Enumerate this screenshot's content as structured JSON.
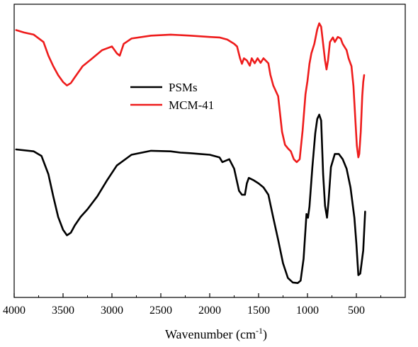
{
  "chart_data": {
    "type": "line",
    "xlabel": "Wavenumber (cm",
    "xlabel_sup": "-1",
    "xlabel_tail": ")",
    "ylabel": "",
    "xlim": [
      4000,
      0
    ],
    "ylim": [
      0,
      100
    ],
    "x_reversed": true,
    "grid": false,
    "legend_position": "center-left",
    "x_ticks": [
      4000,
      3500,
      3000,
      2500,
      2000,
      1500,
      1000,
      500
    ],
    "x_tick_labels": [
      "4000",
      "3500",
      "3000",
      "2500",
      "2000",
      "1500",
      "1000",
      "500"
    ],
    "series": [
      {
        "name": "PSMs",
        "color": "#000000",
        "points": [
          [
            3980,
            51.6
          ],
          [
            3800,
            50.9
          ],
          [
            3720,
            49.1
          ],
          [
            3650,
            42.2
          ],
          [
            3600,
            33.8
          ],
          [
            3550,
            26.0
          ],
          [
            3500,
            21.1
          ],
          [
            3460,
            19.0
          ],
          [
            3420,
            20.0
          ],
          [
            3380,
            22.8
          ],
          [
            3320,
            26.0
          ],
          [
            3250,
            28.9
          ],
          [
            3150,
            33.8
          ],
          [
            3050,
            39.9
          ],
          [
            2950,
            45.5
          ],
          [
            2800,
            49.6
          ],
          [
            2600,
            51.1
          ],
          [
            2400,
            50.9
          ],
          [
            2300,
            50.4
          ],
          [
            2200,
            50.2
          ],
          [
            2100,
            49.9
          ],
          [
            2000,
            49.6
          ],
          [
            1900,
            48.6
          ],
          [
            1870,
            46.8
          ],
          [
            1800,
            47.9
          ],
          [
            1750,
            44.3
          ],
          [
            1700,
            35.9
          ],
          [
            1670,
            34.4
          ],
          [
            1640,
            34.4
          ],
          [
            1620,
            38.7
          ],
          [
            1600,
            40.8
          ],
          [
            1550,
            39.9
          ],
          [
            1500,
            38.7
          ],
          [
            1450,
            37.2
          ],
          [
            1400,
            34.4
          ],
          [
            1350,
            25.7
          ],
          [
            1300,
            17.3
          ],
          [
            1250,
            8.4
          ],
          [
            1200,
            2.8
          ],
          [
            1150,
            1.1
          ],
          [
            1100,
            0.9
          ],
          [
            1070,
            1.8
          ],
          [
            1040,
            10.1
          ],
          [
            1010,
            27.1
          ],
          [
            995,
            25.7
          ],
          [
            980,
            29.9
          ],
          [
            950,
            44.9
          ],
          [
            920,
            57.8
          ],
          [
            900,
            63.2
          ],
          [
            880,
            64.8
          ],
          [
            860,
            62.6
          ],
          [
            840,
            42.2
          ],
          [
            820,
            30.2
          ],
          [
            800,
            25.7
          ],
          [
            785,
            31.9
          ],
          [
            760,
            44.9
          ],
          [
            720,
            49.9
          ],
          [
            680,
            49.9
          ],
          [
            640,
            47.9
          ],
          [
            600,
            44.3
          ],
          [
            560,
            37.2
          ],
          [
            520,
            25.7
          ],
          [
            500,
            15.9
          ],
          [
            480,
            3.9
          ],
          [
            460,
            4.5
          ],
          [
            430,
            13.3
          ],
          [
            410,
            28.0
          ]
        ]
      },
      {
        "name": "MCM-41",
        "color": "#ee1c1c",
        "points": [
          [
            3980,
            96.9
          ],
          [
            3900,
            96.0
          ],
          [
            3800,
            95.2
          ],
          [
            3700,
            92.4
          ],
          [
            3650,
            87.2
          ],
          [
            3600,
            83.2
          ],
          [
            3550,
            79.8
          ],
          [
            3500,
            77.2
          ],
          [
            3460,
            75.9
          ],
          [
            3420,
            76.8
          ],
          [
            3380,
            79.0
          ],
          [
            3300,
            83.2
          ],
          [
            3200,
            86.2
          ],
          [
            3100,
            89.3
          ],
          [
            3000,
            90.7
          ],
          [
            2950,
            88.1
          ],
          [
            2920,
            87.2
          ],
          [
            2880,
            91.7
          ],
          [
            2800,
            93.7
          ],
          [
            2600,
            94.8
          ],
          [
            2400,
            95.2
          ],
          [
            2200,
            94.8
          ],
          [
            2000,
            94.3
          ],
          [
            1900,
            94.1
          ],
          [
            1820,
            93.3
          ],
          [
            1750,
            91.7
          ],
          [
            1720,
            90.7
          ],
          [
            1690,
            86.2
          ],
          [
            1670,
            84.1
          ],
          [
            1650,
            86.2
          ],
          [
            1620,
            85.4
          ],
          [
            1590,
            83.4
          ],
          [
            1570,
            86.2
          ],
          [
            1540,
            84.3
          ],
          [
            1510,
            86.2
          ],
          [
            1480,
            84.5
          ],
          [
            1450,
            86.2
          ],
          [
            1400,
            84.3
          ],
          [
            1380,
            80.0
          ],
          [
            1350,
            75.9
          ],
          [
            1300,
            71.8
          ],
          [
            1260,
            58.3
          ],
          [
            1230,
            53.4
          ],
          [
            1200,
            52.0
          ],
          [
            1170,
            50.9
          ],
          [
            1140,
            47.9
          ],
          [
            1110,
            46.8
          ],
          [
            1080,
            47.9
          ],
          [
            1050,
            58.7
          ],
          [
            1020,
            72.6
          ],
          [
            1000,
            77.6
          ],
          [
            980,
            84.1
          ],
          [
            960,
            88.1
          ],
          [
            930,
            91.7
          ],
          [
            900,
            97.2
          ],
          [
            880,
            99.5
          ],
          [
            860,
            98.2
          ],
          [
            840,
            91.7
          ],
          [
            820,
            85.4
          ],
          [
            805,
            82.0
          ],
          [
            790,
            85.4
          ],
          [
            770,
            92.4
          ],
          [
            740,
            94.1
          ],
          [
            720,
            92.4
          ],
          [
            690,
            94.3
          ],
          [
            660,
            93.7
          ],
          [
            640,
            91.7
          ],
          [
            600,
            89.3
          ],
          [
            580,
            86.2
          ],
          [
            550,
            83.2
          ],
          [
            530,
            75.6
          ],
          [
            510,
            62.8
          ],
          [
            495,
            53.0
          ],
          [
            480,
            48.6
          ],
          [
            470,
            49.9
          ],
          [
            455,
            58.3
          ],
          [
            440,
            71.8
          ],
          [
            430,
            77.2
          ],
          [
            420,
            79.8
          ]
        ]
      }
    ]
  },
  "colors": {
    "axis": "#000000",
    "PSMs": "#000000",
    "MCM-41": "#ee1c1c"
  }
}
